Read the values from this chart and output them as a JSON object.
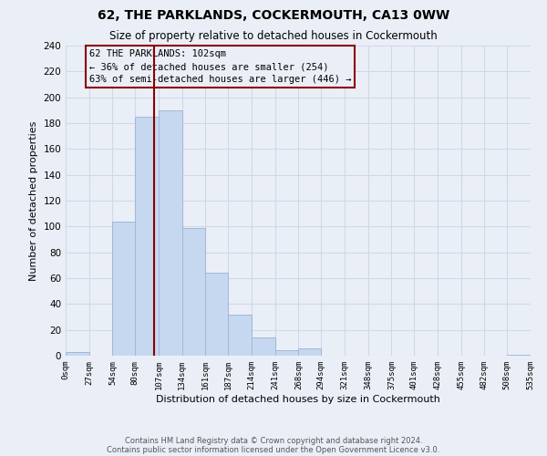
{
  "title": "62, THE PARKLANDS, COCKERMOUTH, CA13 0WW",
  "subtitle": "Size of property relative to detached houses in Cockermouth",
  "xlabel": "Distribution of detached houses by size in Cockermouth",
  "ylabel": "Number of detached properties",
  "footnote1": "Contains HM Land Registry data © Crown copyright and database right 2024.",
  "footnote2": "Contains public sector information licensed under the Open Government Licence v3.0.",
  "bin_edges": [
    0,
    27,
    54,
    80,
    107,
    134,
    161,
    187,
    214,
    241,
    268,
    294,
    321,
    348,
    375,
    401,
    428,
    455,
    482,
    508,
    535
  ],
  "bin_labels": [
    "0sqm",
    "27sqm",
    "54sqm",
    "80sqm",
    "107sqm",
    "134sqm",
    "161sqm",
    "187sqm",
    "214sqm",
    "241sqm",
    "268sqm",
    "294sqm",
    "321sqm",
    "348sqm",
    "375sqm",
    "401sqm",
    "428sqm",
    "455sqm",
    "482sqm",
    "508sqm",
    "535sqm"
  ],
  "counts": [
    3,
    0,
    104,
    185,
    190,
    99,
    64,
    32,
    14,
    4,
    6,
    0,
    0,
    0,
    0,
    0,
    0,
    0,
    0,
    1
  ],
  "bar_color": "#c5d8f0",
  "bar_edge_color": "#a0b8d8",
  "vline_x": 102,
  "vline_color": "#8b0000",
  "annotation_title": "62 THE PARKLANDS: 102sqm",
  "annotation_line1": "← 36% of detached houses are smaller (254)",
  "annotation_line2": "63% of semi-detached houses are larger (446) →",
  "annotation_box_color": "#8b0000",
  "ylim": [
    0,
    240
  ],
  "yticks": [
    0,
    20,
    40,
    60,
    80,
    100,
    120,
    140,
    160,
    180,
    200,
    220,
    240
  ],
  "grid_color": "#d0d8e8",
  "background_color": "#eaeff7"
}
